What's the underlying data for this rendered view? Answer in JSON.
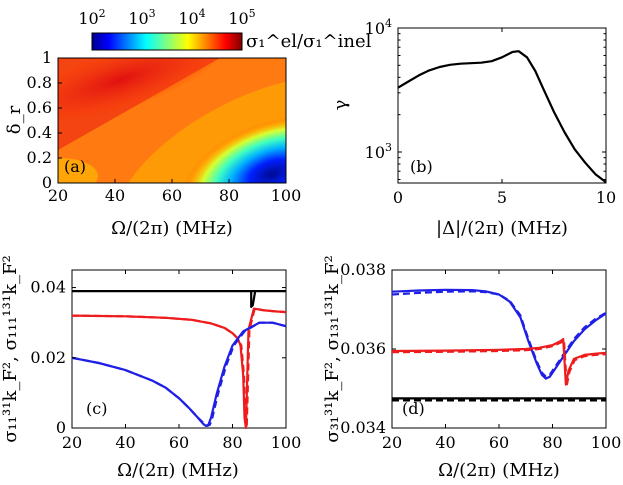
{
  "colors": {
    "blue": "#1f1fe6",
    "red": "#ee1c1c",
    "black": "#000000",
    "frame": "#000000"
  },
  "chart_data": [
    {
      "id": "a",
      "type": "heatmap",
      "panel_label": "(a)",
      "xlabel": "Ω/(2π) (MHz)",
      "ylabel": "δ_r",
      "xlim": [
        20,
        100
      ],
      "ylim": [
        0,
        1
      ],
      "xticks": [
        "20",
        "40",
        "60",
        "80",
        "100"
      ],
      "yticks": [
        "0",
        "0.2",
        "0.4",
        "0.6",
        "0.8",
        "1"
      ],
      "colorbar": {
        "label": "σ₁^el/σ₁^inel",
        "scale": "log",
        "range_exponents": [
          2,
          5
        ],
        "ticks": [
          {
            "base": "10",
            "exp": "2"
          },
          {
            "base": "10",
            "exp": "3"
          },
          {
            "base": "10",
            "exp": "4"
          },
          {
            "base": "10",
            "exp": "5"
          }
        ]
      },
      "description_values": {
        "max_region": "upper-left (Ω≈20–60 MHz, δ_r≈0.6–1)",
        "min_region": "lower-right (Ω≈90–100 MHz, δ_r≈0.05)"
      }
    },
    {
      "id": "b",
      "type": "line",
      "panel_label": "(b)",
      "xlabel": "|Δ|/(2π) (MHz)",
      "ylabel": "γ",
      "xlim": [
        0,
        10
      ],
      "ylim_exponents": [
        2.75,
        4
      ],
      "yscale": "log",
      "xticks": [
        "0",
        "5",
        "10"
      ],
      "yticks": [
        {
          "base": "10",
          "exp": "3"
        },
        {
          "base": "10",
          "exp": "4"
        }
      ],
      "series": [
        {
          "name": "γ",
          "color": "black",
          "x": [
            0,
            0.5,
            1,
            1.5,
            2,
            2.5,
            3,
            3.5,
            4,
            4.5,
            5,
            5.5,
            5.8,
            6.2,
            6.6,
            7,
            7.5,
            8,
            8.5,
            9,
            9.5,
            10
          ],
          "y": [
            3300,
            3700,
            4150,
            4550,
            4850,
            5050,
            5150,
            5200,
            5250,
            5400,
            5800,
            6400,
            6500,
            5800,
            4500,
            3200,
            2100,
            1450,
            1050,
            820,
            660,
            570
          ]
        }
      ]
    },
    {
      "id": "c",
      "type": "line",
      "panel_label": "(c)",
      "xlabel": "Ω/(2π) (MHz)",
      "ylabel": "σ₁₁³¹k_F², σ₁₁₁¹³¹k_F²",
      "xlim": [
        20,
        100
      ],
      "ylim": [
        0,
        0.045
      ],
      "xticks": [
        "20",
        "40",
        "60",
        "80",
        "100"
      ],
      "yticks": [
        "0",
        "0.02",
        "0.04"
      ],
      "series": [
        {
          "name": "black solid",
          "color": "black",
          "dash": false,
          "x": [
            20,
            86,
            87,
            87.5,
            88,
            100
          ],
          "y": [
            0.039,
            0.039,
            0.039,
            0.039,
            0.039,
            0.039
          ]
        },
        {
          "name": "black spike",
          "color": "black",
          "dash": false,
          "x": [
            87,
            87,
            87.6,
            88.5
          ],
          "y": [
            0.039,
            0.0345,
            0.035,
            0.039
          ]
        },
        {
          "name": "red solid",
          "color": "red",
          "dash": false,
          "x": [
            20,
            40,
            55,
            65,
            72,
            77,
            80,
            82,
            83,
            84,
            84.5,
            85,
            86,
            88,
            92,
            96,
            100
          ],
          "y": [
            0.032,
            0.0318,
            0.0314,
            0.0308,
            0.0298,
            0.0285,
            0.027,
            0.0255,
            0.0235,
            0.015,
            0.003,
            0.0,
            0.028,
            0.034,
            0.0335,
            0.0332,
            0.033
          ]
        },
        {
          "name": "red dashed",
          "color": "red",
          "dash": true,
          "x": [
            20,
            40,
            55,
            65,
            72,
            77,
            80,
            82,
            83.3,
            84.3,
            84.8,
            85.3,
            86.3,
            88.3,
            92,
            96,
            100
          ],
          "y": [
            0.032,
            0.0318,
            0.0314,
            0.0308,
            0.0298,
            0.0285,
            0.027,
            0.0255,
            0.0235,
            0.015,
            0.003,
            0.0,
            0.028,
            0.034,
            0.0335,
            0.0332,
            0.033
          ]
        },
        {
          "name": "blue solid",
          "color": "blue",
          "dash": false,
          "x": [
            20,
            30,
            40,
            50,
            55,
            60,
            64,
            67,
            69,
            70,
            71,
            72,
            74,
            77,
            80,
            84,
            90,
            95,
            100
          ],
          "y": [
            0.02,
            0.0185,
            0.0165,
            0.0135,
            0.0115,
            0.0085,
            0.0055,
            0.003,
            0.0012,
            0.0006,
            0.0009,
            0.003,
            0.0095,
            0.0175,
            0.0235,
            0.0275,
            0.03,
            0.03,
            0.029
          ]
        },
        {
          "name": "blue dashed",
          "color": "blue",
          "dash": true,
          "x": [
            20,
            30,
            40,
            50,
            55,
            60,
            64,
            67,
            69.5,
            70.5,
            71.5,
            72.5,
            74.5,
            77.5,
            80.5,
            84.5,
            90,
            95,
            100
          ],
          "y": [
            0.02,
            0.0185,
            0.0165,
            0.0135,
            0.0115,
            0.0085,
            0.0055,
            0.003,
            0.0012,
            0.0006,
            0.0009,
            0.003,
            0.0095,
            0.0175,
            0.0235,
            0.0275,
            0.03,
            0.03,
            0.029
          ]
        }
      ]
    },
    {
      "id": "d",
      "type": "line",
      "panel_label": "(d)",
      "xlabel": "Ω/(2π) (MHz)",
      "ylabel": "σ₃₁³¹k_F², σ₁₃₁¹³¹k_F²",
      "xlim": [
        20,
        100
      ],
      "ylim": [
        0.034,
        0.038
      ],
      "xticks": [
        "20",
        "40",
        "60",
        "80",
        "100"
      ],
      "yticks": [
        "0.034",
        "0.036",
        "0.038"
      ],
      "series": [
        {
          "name": "blue solid",
          "color": "blue",
          "dash": false,
          "x": [
            20,
            30,
            40,
            50,
            55,
            60,
            64,
            68,
            71,
            74,
            76,
            77.5,
            79,
            81,
            84,
            88,
            92,
            96,
            100
          ],
          "y": [
            0.03745,
            0.03748,
            0.0375,
            0.03749,
            0.03746,
            0.03738,
            0.0372,
            0.0368,
            0.0362,
            0.03565,
            0.03535,
            0.03525,
            0.0353,
            0.0355,
            0.0358,
            0.0362,
            0.0365,
            0.03672,
            0.0369
          ]
        },
        {
          "name": "blue dashed",
          "color": "blue",
          "dash": true,
          "x": [
            20,
            30,
            40,
            50,
            55,
            60,
            64,
            68,
            71,
            74,
            76,
            77.5,
            79,
            81,
            84,
            88,
            92,
            96,
            100
          ],
          "y": [
            0.03738,
            0.03742,
            0.03745,
            0.03746,
            0.03744,
            0.03738,
            0.03722,
            0.03685,
            0.03625,
            0.0357,
            0.0354,
            0.0353,
            0.03535,
            0.03555,
            0.03585,
            0.03625,
            0.03655,
            0.03676,
            0.03692
          ]
        },
        {
          "name": "red solid",
          "color": "red",
          "dash": false,
          "x": [
            20,
            40,
            60,
            70,
            75,
            80,
            83,
            84,
            84.5,
            85,
            86,
            88,
            92,
            96,
            100
          ],
          "y": [
            0.03595,
            0.03596,
            0.03598,
            0.036,
            0.03603,
            0.0361,
            0.0362,
            0.03625,
            0.0357,
            0.0351,
            0.03545,
            0.03575,
            0.03585,
            0.03588,
            0.0359
          ]
        },
        {
          "name": "red dashed",
          "color": "red",
          "dash": true,
          "x": [
            20,
            40,
            60,
            70,
            75,
            80,
            83.3,
            84.3,
            84.8,
            85.3,
            86.3,
            88.3,
            92,
            96,
            100
          ],
          "y": [
            0.03592,
            0.03593,
            0.03595,
            0.03597,
            0.036,
            0.03607,
            0.03617,
            0.03622,
            0.03567,
            0.03507,
            0.03542,
            0.03572,
            0.03582,
            0.03585,
            0.03587
          ]
        },
        {
          "name": "black solid",
          "color": "black",
          "dash": false,
          "x": [
            20,
            100
          ],
          "y": [
            0.03475,
            0.03475
          ]
        },
        {
          "name": "black dashed",
          "color": "black",
          "dash": true,
          "x": [
            20,
            100
          ],
          "y": [
            0.0347,
            0.0347
          ]
        }
      ]
    }
  ]
}
